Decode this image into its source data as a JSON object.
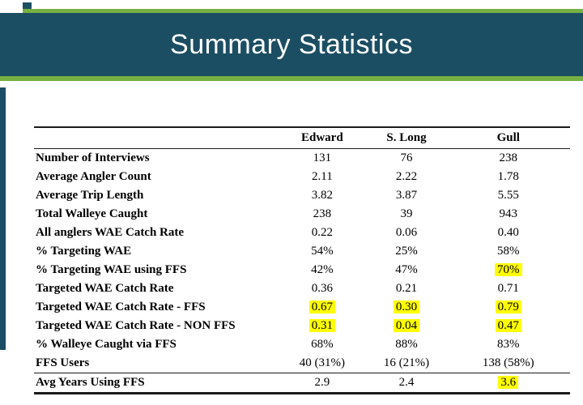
{
  "slide": {
    "title": "Summary Statistics"
  },
  "colors": {
    "banner_blue": "#1c4e63",
    "accent_green": "#76b043",
    "highlight_yellow": "#ffff00"
  },
  "table": {
    "columns": [
      "Edward",
      "S. Long",
      "Gull"
    ],
    "rows": [
      {
        "label": "Number of Interviews",
        "values": [
          "131",
          "76",
          "238"
        ],
        "highlight": []
      },
      {
        "label": "Average Angler Count",
        "values": [
          "2.11",
          "2.22",
          "1.78"
        ],
        "highlight": []
      },
      {
        "label": "Average Trip Length",
        "values": [
          "3.82",
          "3.87",
          "5.55"
        ],
        "highlight": []
      },
      {
        "label": "Total Walleye Caught",
        "values": [
          "238",
          "39",
          "943"
        ],
        "highlight": []
      },
      {
        "label": "All anglers WAE Catch Rate",
        "values": [
          "0.22",
          "0.06",
          "0.40"
        ],
        "highlight": []
      },
      {
        "label": "% Targeting WAE",
        "values": [
          "54%",
          "25%",
          "58%"
        ],
        "highlight": []
      },
      {
        "label": "% Targeting WAE using FFS",
        "values": [
          "42%",
          "47%",
          "70%"
        ],
        "highlight": [
          2
        ]
      },
      {
        "label": "Targeted WAE Catch Rate",
        "values": [
          "0.36",
          "0.21",
          "0.71"
        ],
        "highlight": []
      },
      {
        "label": "Targeted WAE Catch Rate - FFS",
        "values": [
          "0.67",
          "0.30",
          "0.79"
        ],
        "highlight": [
          0,
          1,
          2
        ]
      },
      {
        "label": "Targeted WAE Catch Rate - NON FFS",
        "values": [
          "0.31",
          "0.04",
          "0.47"
        ],
        "highlight": [
          0,
          1,
          2
        ]
      },
      {
        "label": "% Walleye Caught via FFS",
        "values": [
          "68%",
          "88%",
          "83%"
        ],
        "highlight": []
      },
      {
        "label": "FFS Users",
        "values": [
          "40 (31%)",
          "16 (21%)",
          "138 (58%)"
        ],
        "highlight": []
      },
      {
        "label": "Avg Years Using FFS",
        "values": [
          "2.9",
          "2.4",
          "3.6"
        ],
        "highlight": [
          2
        ]
      }
    ]
  }
}
